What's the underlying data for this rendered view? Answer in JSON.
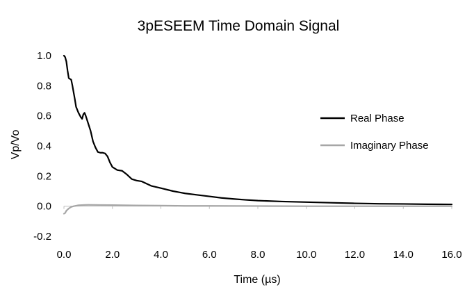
{
  "chart_data": {
    "type": "line",
    "title": "3pESEEM Time Domain Signal",
    "xlabel": "Time (µs)",
    "ylabel": "Vp/Vo",
    "xlim": [
      0,
      16
    ],
    "ylim": [
      -0.2,
      1.0
    ],
    "x_ticks": [
      0,
      2,
      4,
      6,
      8,
      10,
      12,
      14,
      16
    ],
    "x_tick_labels": [
      "0.0",
      "2.0",
      "4.0",
      "6.0",
      "8.0",
      "10.0",
      "12.0",
      "14.0",
      "16.0"
    ],
    "y_ticks": [
      -0.2,
      0.0,
      0.2,
      0.4,
      0.6,
      0.8,
      1.0
    ],
    "y_tick_labels": [
      "-0.2",
      "0.0",
      "0.2",
      "0.4",
      "0.6",
      "0.8",
      "1.0"
    ],
    "grid": false,
    "legend_position": "right",
    "series": [
      {
        "name": "Real Phase",
        "color": "#000000",
        "points": [
          [
            0.0,
            1.0
          ],
          [
            0.05,
            0.99
          ],
          [
            0.1,
            0.96
          ],
          [
            0.15,
            0.9
          ],
          [
            0.2,
            0.85
          ],
          [
            0.3,
            0.84
          ],
          [
            0.35,
            0.8
          ],
          [
            0.45,
            0.71
          ],
          [
            0.5,
            0.66
          ],
          [
            0.6,
            0.62
          ],
          [
            0.7,
            0.59
          ],
          [
            0.75,
            0.58
          ],
          [
            0.8,
            0.61
          ],
          [
            0.85,
            0.62
          ],
          [
            0.9,
            0.6
          ],
          [
            1.0,
            0.55
          ],
          [
            1.1,
            0.5
          ],
          [
            1.2,
            0.43
          ],
          [
            1.3,
            0.39
          ],
          [
            1.4,
            0.36
          ],
          [
            1.5,
            0.355
          ],
          [
            1.6,
            0.355
          ],
          [
            1.7,
            0.35
          ],
          [
            1.8,
            0.33
          ],
          [
            1.9,
            0.29
          ],
          [
            2.0,
            0.26
          ],
          [
            2.2,
            0.24
          ],
          [
            2.4,
            0.235
          ],
          [
            2.6,
            0.21
          ],
          [
            2.8,
            0.18
          ],
          [
            3.0,
            0.17
          ],
          [
            3.2,
            0.165
          ],
          [
            3.4,
            0.15
          ],
          [
            3.6,
            0.135
          ],
          [
            4.0,
            0.12
          ],
          [
            4.5,
            0.1
          ],
          [
            5.0,
            0.085
          ],
          [
            5.5,
            0.075
          ],
          [
            6.0,
            0.065
          ],
          [
            6.5,
            0.055
          ],
          [
            7.0,
            0.048
          ],
          [
            7.5,
            0.042
          ],
          [
            8.0,
            0.037
          ],
          [
            9.0,
            0.031
          ],
          [
            10.0,
            0.027
          ],
          [
            11.0,
            0.023
          ],
          [
            12.0,
            0.019
          ],
          [
            13.0,
            0.016
          ],
          [
            14.0,
            0.015
          ],
          [
            15.0,
            0.013
          ],
          [
            16.0,
            0.012
          ]
        ]
      },
      {
        "name": "Imaginary Phase",
        "color": "#a6a6a6",
        "points": [
          [
            0.0,
            -0.05
          ],
          [
            0.05,
            -0.045
          ],
          [
            0.1,
            -0.03
          ],
          [
            0.2,
            -0.015
          ],
          [
            0.3,
            -0.005
          ],
          [
            0.4,
            0.0
          ],
          [
            0.6,
            0.006
          ],
          [
            0.8,
            0.008
          ],
          [
            1.0,
            0.009
          ],
          [
            1.5,
            0.008
          ],
          [
            2.0,
            0.007
          ],
          [
            3.0,
            0.005
          ],
          [
            4.0,
            0.004
          ],
          [
            5.0,
            0.002
          ],
          [
            6.0,
            0.002
          ],
          [
            8.0,
            0.001
          ],
          [
            10.0,
            0.0
          ],
          [
            12.0,
            0.0
          ],
          [
            14.0,
            0.0
          ],
          [
            16.0,
            0.0
          ]
        ]
      }
    ]
  }
}
